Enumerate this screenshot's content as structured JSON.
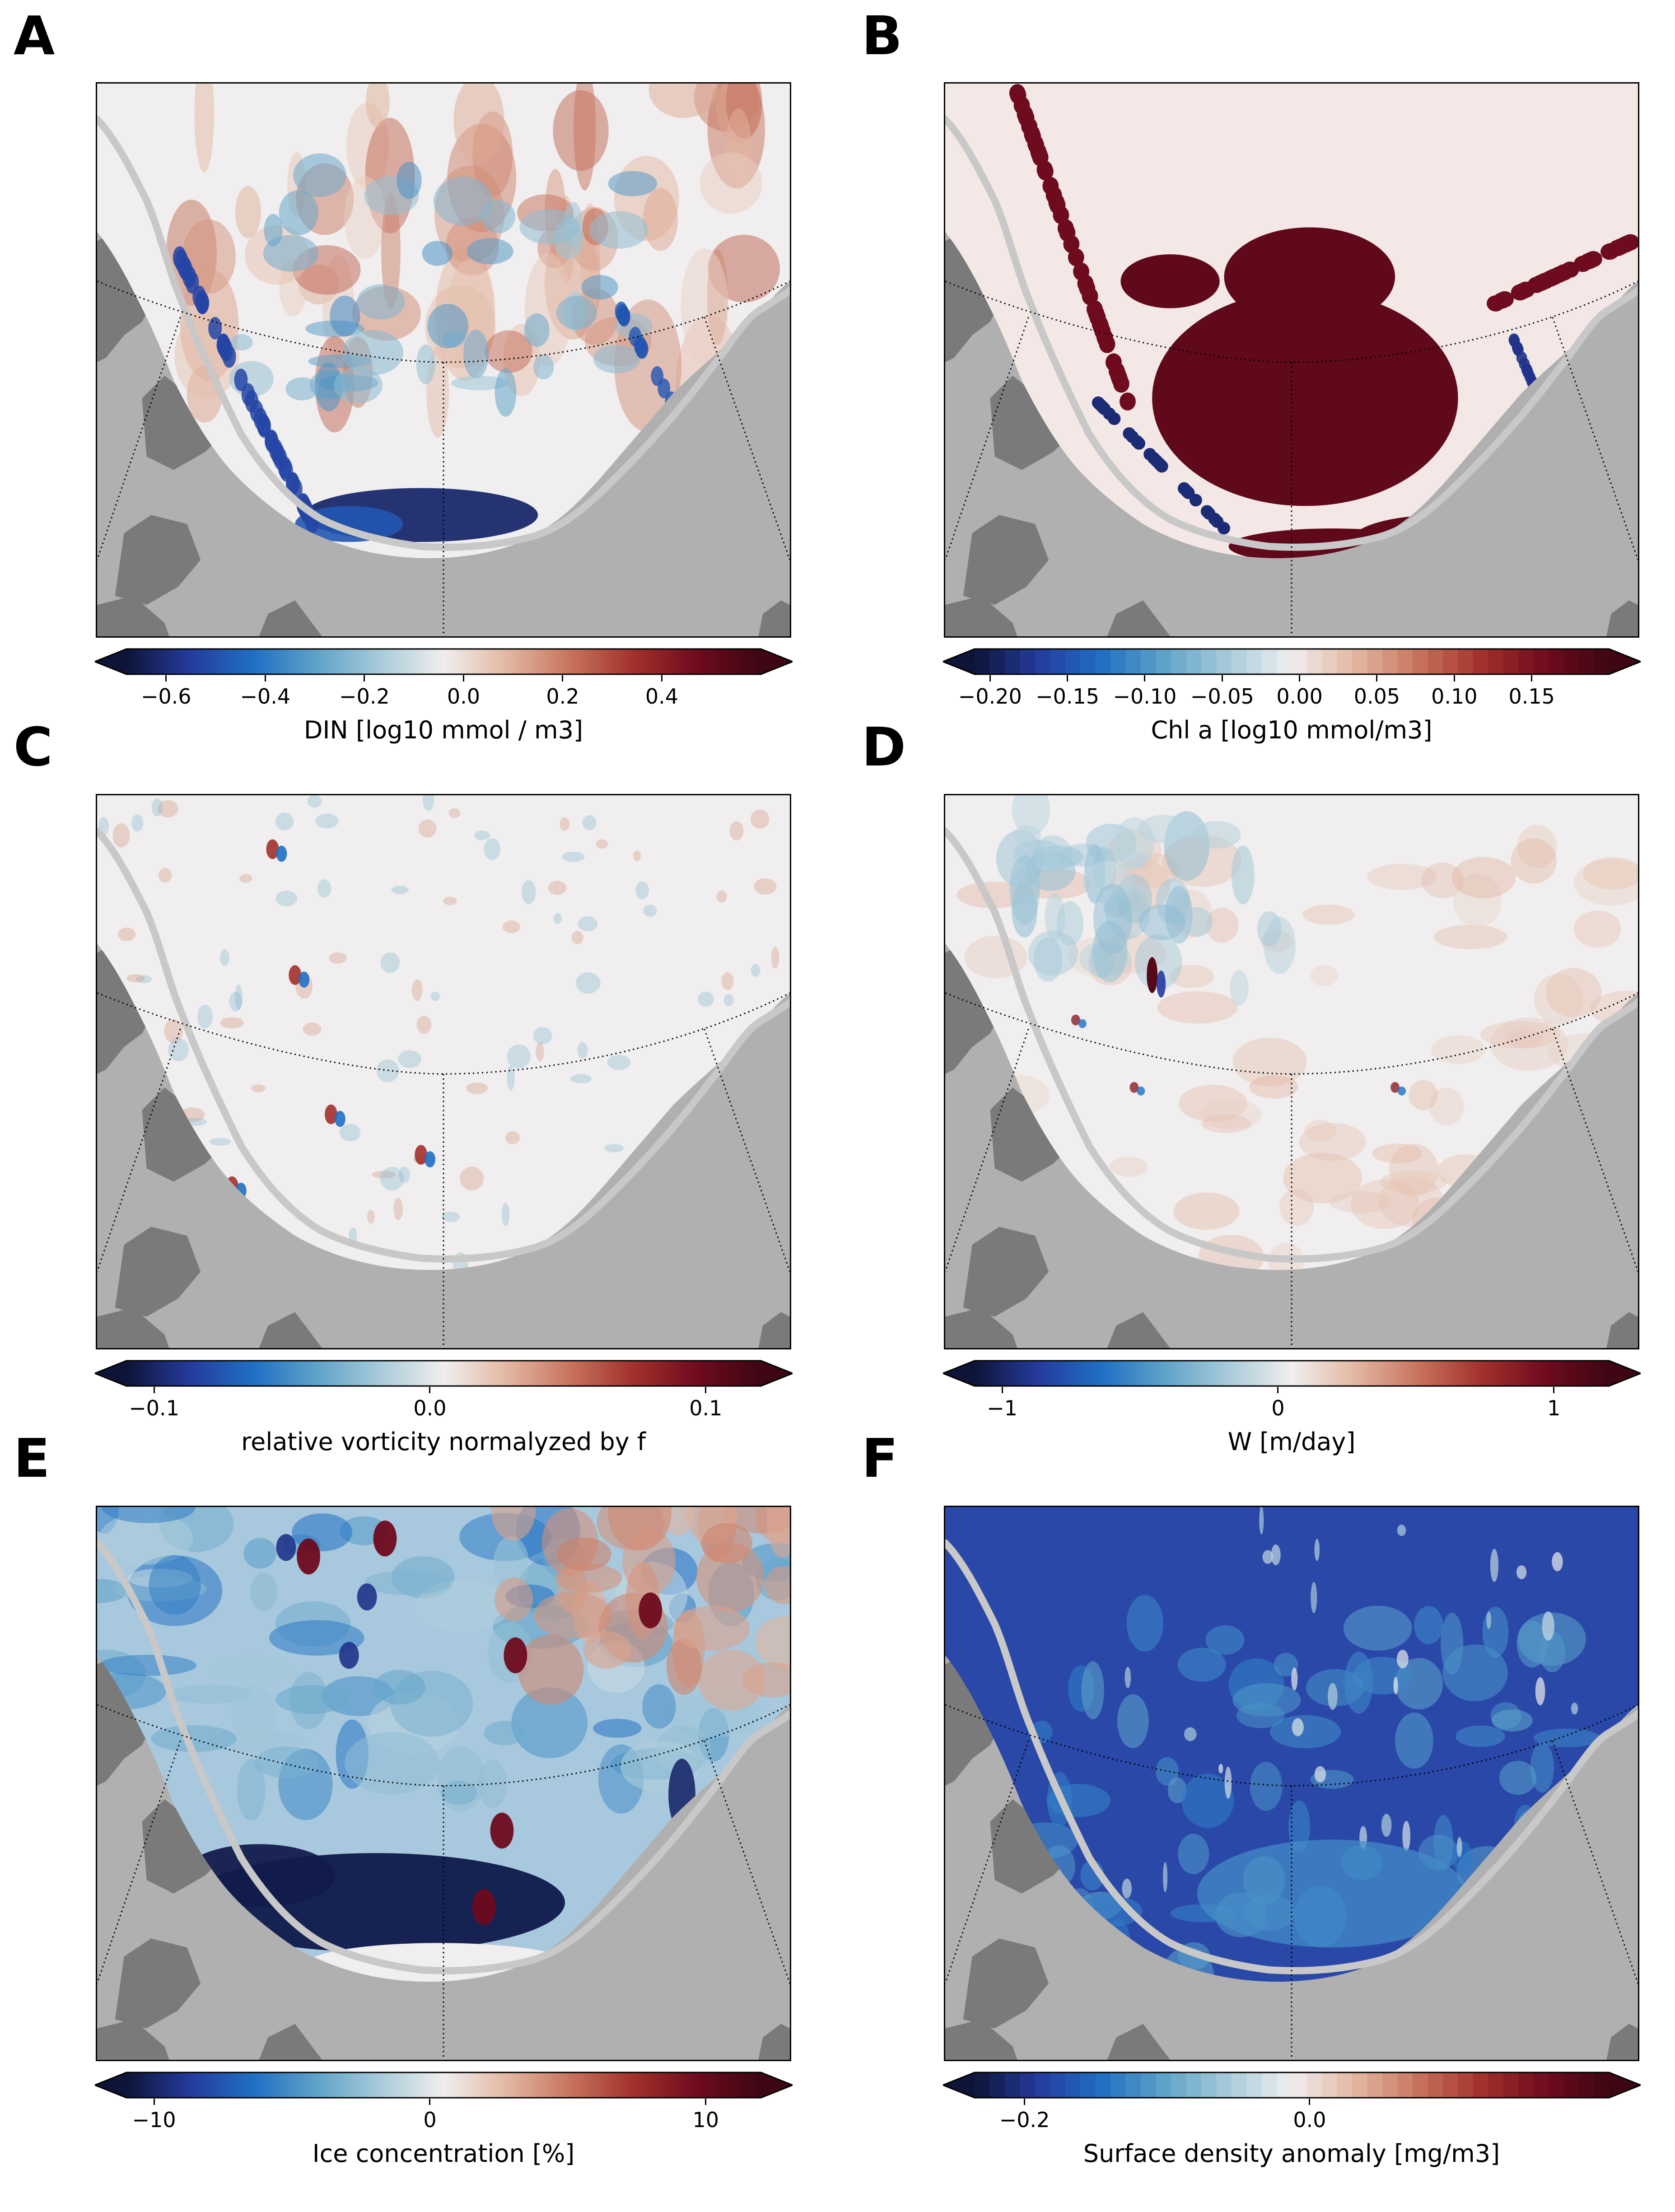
{
  "panels": [
    {
      "letter": "A",
      "variable": "din",
      "colorbar": {
        "label": "DIN [log10 mmol / m3]",
        "range": [
          -0.68,
          0.6
        ],
        "ticks": [
          -0.6,
          -0.4,
          -0.2,
          0.0,
          0.2,
          0.4
        ],
        "tick_labels": [
          "−0.6",
          "−0.4",
          "−0.2",
          "0.0",
          "0.2",
          "0.4"
        ],
        "discrete": false
      }
    },
    {
      "letter": "B",
      "variable": "chl",
      "colorbar": {
        "label": "Chl a [log10 mmol/m3]",
        "range": [
          -0.21,
          0.2
        ],
        "ticks": [
          -0.2,
          -0.15,
          -0.1,
          -0.05,
          0.0,
          0.05,
          0.1,
          0.15
        ],
        "tick_labels": [
          "−0.20",
          "−0.15",
          "−0.10",
          "−0.05",
          "0.00",
          "0.05",
          "0.10",
          "0.15"
        ],
        "discrete": true
      }
    },
    {
      "letter": "C",
      "variable": "vorticity",
      "colorbar": {
        "label": "relative vorticity normalyzed by f",
        "range": [
          -0.11,
          0.12
        ],
        "ticks": [
          -0.1,
          0.0,
          0.1
        ],
        "tick_labels": [
          "−0.1",
          "0.0",
          "0.1"
        ],
        "discrete": false
      }
    },
    {
      "letter": "D",
      "variable": "w",
      "colorbar": {
        "label": "W [m/day]",
        "range": [
          -1.1,
          1.2
        ],
        "ticks": [
          -1,
          0,
          1
        ],
        "tick_labels": [
          "−1",
          "0",
          "1"
        ],
        "discrete": false
      }
    },
    {
      "letter": "E",
      "variable": "ice",
      "colorbar": {
        "label": "Ice concentration [%]",
        "range": [
          -11,
          12
        ],
        "ticks": [
          -10,
          0,
          10
        ],
        "tick_labels": [
          "−10",
          "0",
          "10"
        ],
        "discrete": false
      }
    },
    {
      "letter": "F",
      "variable": "density",
      "colorbar": {
        "label": "Surface density anomaly [mg/m3]",
        "range": [
          -0.235,
          0.21
        ],
        "ticks": [
          -0.2,
          0.0
        ],
        "tick_labels": [
          "−0.2",
          "0.0"
        ],
        "discrete": true
      }
    }
  ],
  "colors": {
    "land": "#b0b0b0",
    "land_dark": "#7a7a7a",
    "coast_line": "#c8c8c8",
    "cmap": [
      "#0d1437",
      "#253b9e",
      "#1f6fc4",
      "#5fa3c9",
      "#a8cbd9",
      "#f0eeee",
      "#e3b7a2",
      "#c7735c",
      "#a2302c",
      "#6e0b1e",
      "#3d0612"
    ]
  },
  "chart_data": [
    {
      "type": "heatmap",
      "panel": "A",
      "title": "",
      "colorbar_label": "DIN [log10 mmol / m3]",
      "vmin": -0.68,
      "vmax": 0.6,
      "extend": "both"
    },
    {
      "type": "heatmap",
      "panel": "B",
      "title": "",
      "colorbar_label": "Chl a [log10 mmol/m3]",
      "vmin": -0.21,
      "vmax": 0.2,
      "extend": "both"
    },
    {
      "type": "heatmap",
      "panel": "C",
      "title": "",
      "colorbar_label": "relative vorticity normalyzed by f",
      "vmin": -0.11,
      "vmax": 0.12,
      "extend": "both"
    },
    {
      "type": "heatmap",
      "panel": "D",
      "title": "",
      "colorbar_label": "W [m/day]",
      "vmin": -1.1,
      "vmax": 1.2,
      "extend": "both"
    },
    {
      "type": "heatmap",
      "panel": "E",
      "title": "",
      "colorbar_label": "Ice concentration [%]",
      "vmin": -11,
      "vmax": 12,
      "extend": "both"
    },
    {
      "type": "heatmap",
      "panel": "F",
      "title": "",
      "colorbar_label": "Surface density anomaly [mg/m3]",
      "vmin": -0.235,
      "vmax": 0.21,
      "extend": "both"
    }
  ]
}
